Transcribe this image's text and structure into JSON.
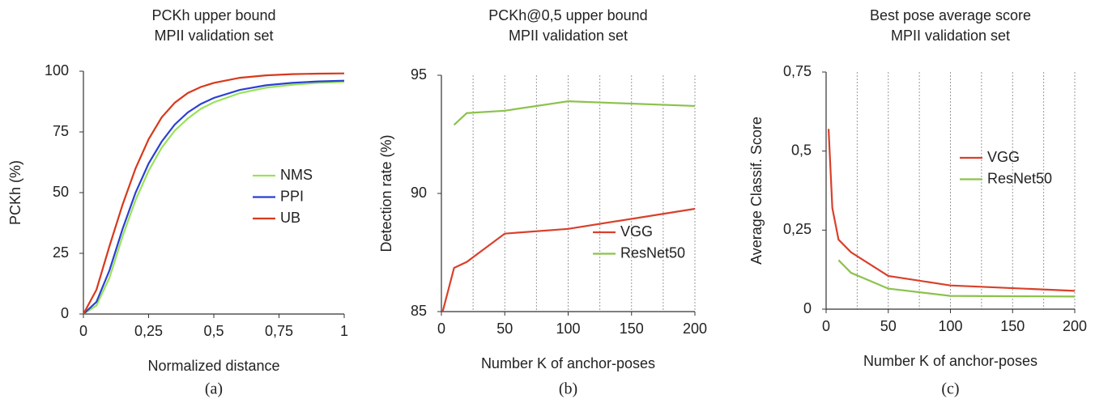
{
  "chart_data": [
    {
      "type": "line",
      "title": "PCKh upper bound",
      "subtitle": "MPII validation set",
      "xlabel": "Normalized distance",
      "ylabel": "PCKh (%)",
      "caption": "(a)",
      "x": [
        0,
        0.05,
        0.1,
        0.15,
        0.2,
        0.25,
        0.3,
        0.35,
        0.4,
        0.45,
        0.5,
        0.6,
        0.7,
        0.8,
        0.9,
        1
      ],
      "series": [
        {
          "name": "NMS",
          "color": "#97e35a",
          "values": [
            0,
            3.5,
            15,
            32,
            47,
            59,
            68.5,
            75.5,
            80.5,
            84.5,
            87.2,
            91,
            93.2,
            94.4,
            95.2,
            95.6
          ]
        },
        {
          "name": "PPI",
          "color": "#2c3fd3",
          "values": [
            0,
            5,
            18,
            35,
            50,
            62,
            71,
            78,
            83,
            86.5,
            89,
            92.3,
            94.2,
            95.2,
            95.8,
            96.1
          ]
        },
        {
          "name": "UB",
          "color": "#d7391c",
          "values": [
            0,
            10,
            28,
            45,
            60,
            72,
            81,
            87,
            91,
            93.5,
            95.2,
            97.3,
            98.3,
            98.8,
            99,
            99.1
          ]
        }
      ],
      "xlim": [
        0,
        1
      ],
      "xticks": [
        0,
        {
          "value": 0.25,
          "label": "0,25"
        },
        {
          "value": 0.5,
          "label": "0,5"
        },
        {
          "value": 0.75,
          "label": "0,75"
        },
        1
      ],
      "ylim": [
        0,
        100
      ],
      "yticks": [
        0,
        25,
        50,
        75,
        100
      ],
      "grid": false,
      "legend": "right"
    },
    {
      "type": "line",
      "title": "PCKh@0,5 upper bound",
      "subtitle": "MPII validation set",
      "xlabel": "Number K of anchor-poses",
      "ylabel": "Detection rate (%)",
      "caption": "(b)",
      "series": [
        {
          "name": "VGG",
          "color": "#d9402a",
          "x": [
            1,
            10,
            20,
            50,
            100,
            200
          ],
          "values": [
            85,
            86.85,
            87.1,
            88.3,
            88.5,
            89.35
          ]
        },
        {
          "name": "ResNet50",
          "color": "#8cc24b",
          "x": [
            10,
            20,
            50,
            100,
            200
          ],
          "values": [
            92.9,
            93.4,
            93.5,
            93.9,
            93.7
          ]
        }
      ],
      "xlim": [
        0,
        200
      ],
      "xticks": [
        0,
        50,
        100,
        150,
        200
      ],
      "xminorticks": [
        25,
        75,
        125,
        175
      ],
      "ylim": [
        85,
        95
      ],
      "yticks": [
        85,
        90,
        95
      ],
      "grid": true,
      "legend": "lower right"
    },
    {
      "type": "line",
      "title": "Best pose average score",
      "subtitle": "MPII validation set",
      "xlabel": "Number K of anchor-poses",
      "ylabel": "Average Classif. Score",
      "caption": "(c)",
      "series": [
        {
          "name": "VGG",
          "color": "#d9402a",
          "x": [
            2,
            5,
            10,
            20,
            50,
            100,
            200
          ],
          "values": [
            0.57,
            0.32,
            0.22,
            0.18,
            0.105,
            0.075,
            0.058
          ]
        },
        {
          "name": "ResNet50",
          "color": "#8cc24b",
          "x": [
            10,
            20,
            50,
            100,
            200
          ],
          "values": [
            0.155,
            0.115,
            0.065,
            0.042,
            0.04
          ]
        }
      ],
      "xlim": [
        0,
        200
      ],
      "xticks": [
        0,
        50,
        100,
        150,
        200
      ],
      "xminorticks": [
        25,
        75,
        125,
        175
      ],
      "ylim": [
        0,
        0.75
      ],
      "yticks": [
        0,
        {
          "value": 0.25,
          "label": "0,25"
        },
        {
          "value": 0.5,
          "label": "0,5"
        },
        {
          "value": 0.75,
          "label": "0,75"
        }
      ],
      "grid": true,
      "legend": "upper right"
    }
  ]
}
